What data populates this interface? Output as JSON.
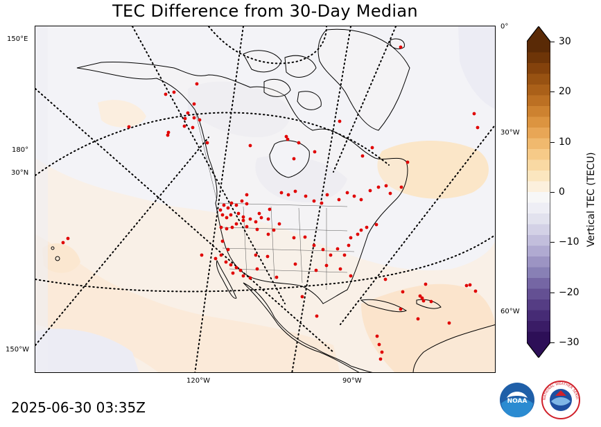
{
  "title": "TEC Difference from 30-Day Median",
  "timestamp": "2025-06-30 03:35Z",
  "map": {
    "projection": "polar stereographic",
    "graticule_labels": {
      "left": [
        "150°E",
        "180°",
        "30°N",
        "150°W"
      ],
      "right": [
        "0°",
        "30°W",
        "60°W"
      ],
      "bottom": [
        "120°W",
        "90°W"
      ]
    },
    "station_marker_color": "#e00000",
    "coast_color": "#000000"
  },
  "colorbar": {
    "label": "Vertical TEC (TECU)",
    "ticks": [
      "30",
      "20",
      "10",
      "0",
      "−10",
      "−20",
      "−30"
    ],
    "range": [
      -30,
      30
    ],
    "colors_high_to_low": [
      "#5a2a06",
      "#6e3508",
      "#84420c",
      "#985212",
      "#aa6019",
      "#bc7023",
      "#cd8230",
      "#dc9440",
      "#e8a656",
      "#f0b96e",
      "#f6ca88",
      "#f9d9a3",
      "#fbe6bf",
      "#fcf0dd",
      "#f7f7f7",
      "#eeeef5",
      "#e2e2ee",
      "#d3d1e6",
      "#c2bedc",
      "#b0aad1",
      "#9c94c3",
      "#8880b5",
      "#7566a4",
      "#645093",
      "#553d84",
      "#462b75",
      "#3a1c66",
      "#2d0f57"
    ]
  },
  "logos": {
    "noaa": {
      "text": "NOAA"
    },
    "nws": {
      "text": "NATIONAL WEATHER SERVICE"
    }
  }
}
